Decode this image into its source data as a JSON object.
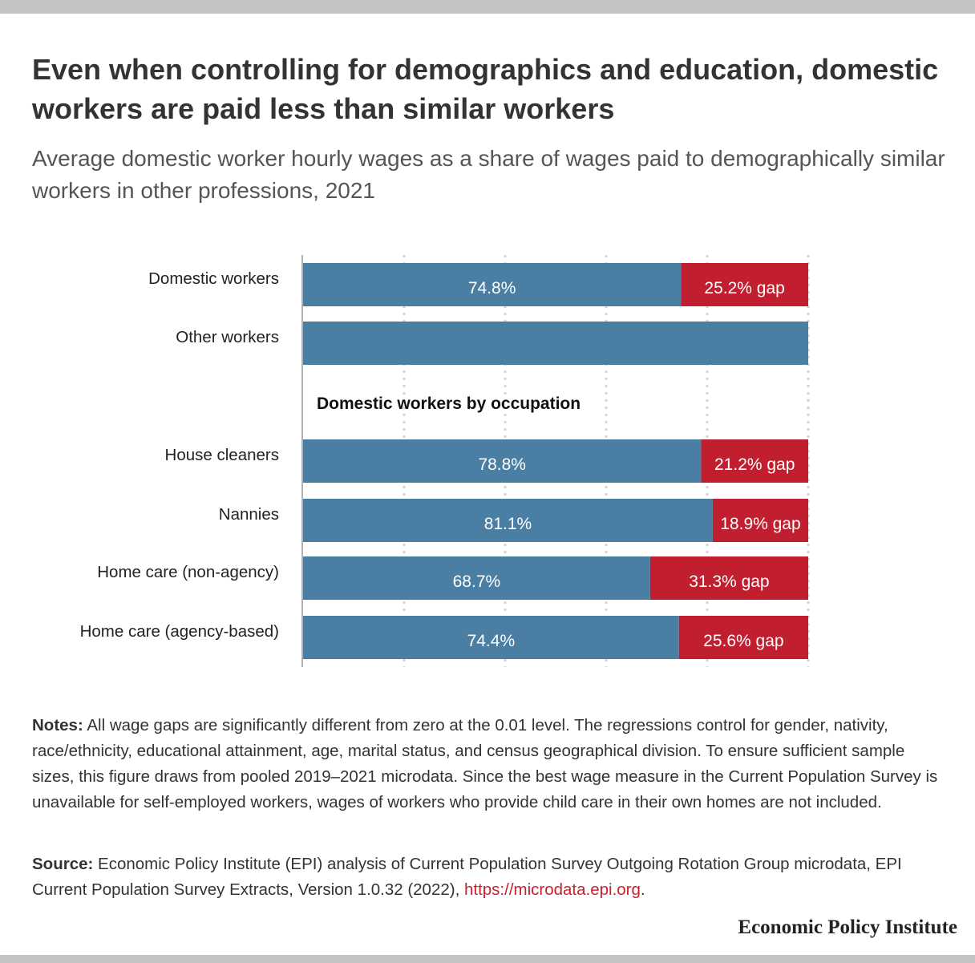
{
  "title": "Even when controlling for demographics and education, domestic workers are paid less than similar workers",
  "subtitle": "Average domestic worker hourly wages as a share of wages paid to demographically similar workers in other professions, 2021",
  "colors": {
    "share": "#4a7fa3",
    "gap": "#c11f2f",
    "grid": "#d4d4d4",
    "axis": "#b0b0b0",
    "link": "#c7202f"
  },
  "chart_data": {
    "type": "bar",
    "orientation": "horizontal",
    "stacked": true,
    "xlim": [
      0,
      100
    ],
    "grid": true,
    "group_heading": "Domestic workers by occupation",
    "categories": [
      "Domestic workers",
      "Other workers",
      "House cleaners",
      "Nannies",
      "Home care (non-agency)",
      "Home care (agency-based)"
    ],
    "series": [
      {
        "values": [
          74.8,
          100,
          78.8,
          81.1,
          68.7,
          74.4
        ],
        "labels": [
          "74.8%",
          "",
          "78.8%",
          "81.1%",
          "68.7%",
          "74.4%"
        ]
      },
      {
        "values": [
          25.2,
          0,
          21.2,
          18.9,
          31.3,
          25.6
        ],
        "labels": [
          "25.2% gap",
          "",
          "21.2% gap",
          "18.9% gap",
          "31.3% gap",
          "25.6% gap"
        ]
      }
    ]
  },
  "notes": {
    "label": "Notes:",
    "text": " All wage gaps are significantly different from zero at the 0.01 level. The regressions control for gender, nativity, race/ethnicity, educational attainment, age, marital status, and census geographical division. To ensure sufficient sample sizes, this figure draws from pooled 2019–2021 microdata. Since the best wage measure in the Current Population Survey is unavailable for self-employed workers, wages of workers who provide child care in their own homes are not included."
  },
  "source": {
    "label": "Source:",
    "text": " Economic Policy Institute (EPI) analysis of Current Population Survey Outgoing Rotation Group microdata, EPI Current Population Survey Extracts, Version 1.0.32 (2022), ",
    "link": "https://microdata.epi.org",
    "end": "."
  },
  "brand": "Economic Policy Institute"
}
